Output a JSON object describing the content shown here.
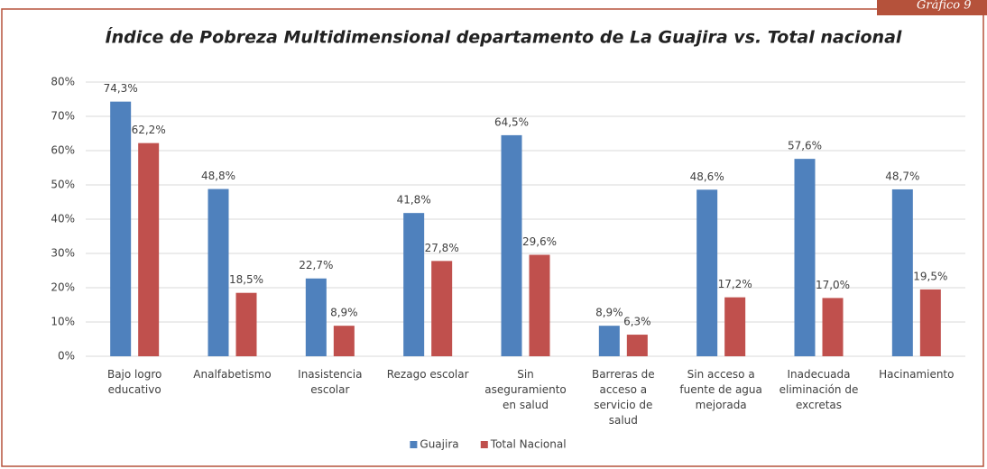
{
  "chart_data": {
    "type": "bar",
    "badge": "Gráfico 9",
    "title": "Índice de Pobreza Multidimensional departamento de La Guajira vs. Total nacional",
    "categories": [
      "Bajo logro educativo",
      "Analfabetismo",
      "Inasistencia escolar",
      "Rezago escolar",
      "Sin aseguramiento en salud",
      "Barreras de acceso a servicio de salud",
      "Sin acceso a fuente de agua mejorada",
      "Inadecuada eliminación de excretas",
      "Hacinamiento"
    ],
    "series": [
      {
        "name": "Guajira",
        "color": "#4f81bd",
        "values": [
          74.3,
          48.8,
          22.7,
          41.8,
          64.5,
          8.9,
          48.6,
          57.6,
          48.7
        ],
        "value_labels": [
          "74,3%",
          "48,8%",
          "22,7%",
          "41,8%",
          "64,5%",
          "8,9%",
          "48,6%",
          "57,6%",
          "48,7%"
        ]
      },
      {
        "name": "Total Nacional",
        "color": "#c0504d",
        "values": [
          62.2,
          18.5,
          8.9,
          27.8,
          29.6,
          6.3,
          17.2,
          17.0,
          19.5
        ],
        "value_labels": [
          "62,2%",
          "18,5%",
          "8,9%",
          "27,8%",
          "29,6%",
          "6,3%",
          "17,2%",
          "17,0%",
          "19,5%"
        ]
      }
    ],
    "ylim": [
      0,
      80
    ],
    "yticks": [
      {
        "value": 0,
        "label": "0%"
      },
      {
        "value": 10,
        "label": "10%"
      },
      {
        "value": 20,
        "label": "20%"
      },
      {
        "value": 30,
        "label": "30%"
      },
      {
        "value": 40,
        "label": "40%"
      },
      {
        "value": 50,
        "label": "50%"
      },
      {
        "value": 60,
        "label": "60%"
      },
      {
        "value": 70,
        "label": "70%"
      },
      {
        "value": 80,
        "label": "80%"
      }
    ],
    "grid": true,
    "legend": "bottom"
  }
}
